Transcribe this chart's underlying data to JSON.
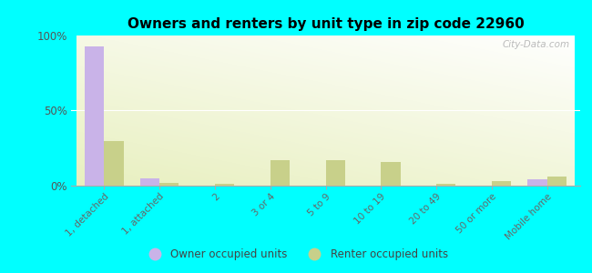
{
  "title": "Owners and renters by unit type in zip code 22960",
  "categories": [
    "1, detached",
    "1, attached",
    "2",
    "3 or 4",
    "5 to 9",
    "10 to 19",
    "20 to 49",
    "50 or more",
    "Mobile home"
  ],
  "owner_values": [
    93,
    5,
    0,
    0,
    0,
    0,
    0,
    0,
    4
  ],
  "renter_values": [
    30,
    2,
    1,
    17,
    17,
    16,
    1,
    3,
    6
  ],
  "owner_color": "#c9b3e8",
  "renter_color": "#c8d08a",
  "background_color": "#00ffff",
  "ylim": [
    0,
    100
  ],
  "yticks": [
    0,
    50,
    100
  ],
  "ytick_labels": [
    "0%",
    "50%",
    "100%"
  ],
  "bar_width": 0.35,
  "legend_owner": "Owner occupied units",
  "legend_renter": "Renter occupied units",
  "watermark": "City-Data.com"
}
